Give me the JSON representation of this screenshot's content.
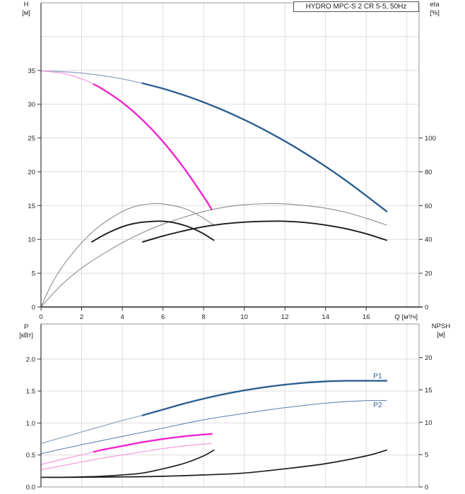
{
  "title_box": "HYDRO MPC-S 2 CR 5-5, 50Hz",
  "colors": {
    "head_thick_blue": "#2d5f92",
    "thin_blue": "#6b8cb5",
    "reduced_blue": "#8a9fc0",
    "magenta": "#f024ce",
    "light_pink": "#f49ade",
    "eta_grey": "#8c8c8c",
    "black_curve": "#1b1b1b",
    "grid": "#dedede",
    "border": "#999999",
    "axis_dark": "#333333"
  },
  "chart_data": [
    {
      "type": "line",
      "title": "HYDRO MPC-S 2 CR 5-5, 50Hz",
      "axes": {
        "left": {
          "sym": "H",
          "unit": "[м]",
          "ticks": [
            0,
            5,
            10,
            15,
            20,
            25,
            30,
            35
          ],
          "lim": [
            0,
            45
          ],
          "grid": [
            5,
            10,
            15,
            20,
            25,
            30,
            35,
            40
          ],
          "fmt": 0
        },
        "right": {
          "sym": "eta",
          "unit": "[%]",
          "ticks": [
            0,
            20,
            40,
            60,
            80,
            100
          ],
          "lim": [
            0,
            180
          ],
          "fmt": 0
        },
        "x": {
          "label": "Q [м³/ч]",
          "ticks": [
            0,
            2,
            4,
            6,
            8,
            10,
            12,
            14,
            16
          ],
          "grid": [
            2,
            4,
            6,
            8,
            10,
            12,
            14,
            16,
            18
          ],
          "lim": [
            0,
            18.6
          ],
          "show_labels": true
        }
      },
      "series": [
        {
          "name": "head-2pumps-reduced-speed",
          "axis": "left",
          "color": "#8a9fc0",
          "width": 1.2,
          "points": [
            [
              0,
              34.9
            ],
            [
              1,
              34.82
            ],
            [
              2,
              34.61
            ],
            [
              3,
              34.25
            ],
            [
              4,
              33.75
            ],
            [
              5,
              33.1
            ]
          ]
        },
        {
          "name": "head-2pumps",
          "axis": "left",
          "color": "#2d5f92",
          "width": 2.4,
          "points": [
            [
              5,
              33.1
            ],
            [
              6,
              32.31
            ],
            [
              7,
              31.37
            ],
            [
              8,
              30.29
            ],
            [
              9,
              29.07
            ],
            [
              10,
              27.7
            ],
            [
              11,
              26.19
            ],
            [
              12,
              24.53
            ],
            [
              13,
              22.73
            ],
            [
              14,
              20.79
            ],
            [
              15,
              18.7
            ],
            [
              16,
              16.47
            ],
            [
              17,
              14.15
            ]
          ]
        },
        {
          "name": "head-1pump-reduced-speed",
          "axis": "left",
          "color": "#f49ade",
          "width": 1.2,
          "points": [
            [
              0,
              34.9
            ],
            [
              1,
              34.61
            ],
            [
              2,
              33.74
            ],
            [
              2.6,
              32.94
            ]
          ]
        },
        {
          "name": "head-1pump",
          "axis": "left",
          "color": "#f024ce",
          "width": 2.4,
          "points": [
            [
              2.6,
              32.94
            ],
            [
              3,
              32.29
            ],
            [
              4,
              30.26
            ],
            [
              5,
              27.65
            ],
            [
              6,
              24.46
            ],
            [
              7,
              20.69
            ],
            [
              8,
              16.34
            ],
            [
              8.4,
              14.43
            ]
          ]
        },
        {
          "name": "eta-1pump",
          "axis": "right",
          "color": "#8c8c8c",
          "width": 1.1,
          "points": [
            [
              0,
              0
            ],
            [
              0.5,
              13
            ],
            [
              1,
              23
            ],
            [
              1.5,
              31
            ],
            [
              2,
              38
            ],
            [
              2.5,
              44
            ],
            [
              3,
              49
            ],
            [
              3.5,
              53
            ],
            [
              4,
              56.5
            ],
            [
              4.5,
              59
            ],
            [
              5,
              60.5
            ],
            [
              5.6,
              61.2
            ],
            [
              6,
              61
            ],
            [
              6.5,
              60
            ],
            [
              7,
              58.5
            ],
            [
              7.5,
              56
            ],
            [
              8,
              52.5
            ],
            [
              8.5,
              48.5
            ]
          ]
        },
        {
          "name": "eta-2pumps",
          "axis": "right",
          "color": "#8c8c8c",
          "width": 1.1,
          "points": [
            [
              0,
              0
            ],
            [
              1,
              13
            ],
            [
              2,
              23
            ],
            [
              3,
              31
            ],
            [
              4,
              38
            ],
            [
              5,
              44
            ],
            [
              6,
              49
            ],
            [
              7,
              53
            ],
            [
              8,
              56.5
            ],
            [
              9,
              59
            ],
            [
              10,
              60.5
            ],
            [
              11.2,
              61.2
            ],
            [
              12,
              61
            ],
            [
              13,
              60
            ],
            [
              14,
              58.5
            ],
            [
              15,
              56
            ],
            [
              16,
              52.5
            ],
            [
              17,
              48.5
            ]
          ]
        },
        {
          "name": "eta-pump-motor-1pump",
          "axis": "right",
          "color": "#1b1b1b",
          "width": 1.9,
          "points": [
            [
              2.5,
              38.5
            ],
            [
              3,
              42
            ],
            [
              3.5,
              45
            ],
            [
              4,
              47.5
            ],
            [
              4.5,
              49.2
            ],
            [
              5,
              50.2
            ],
            [
              5.7,
              50.8
            ],
            [
              6,
              50.7
            ],
            [
              6.5,
              50
            ],
            [
              7,
              48.5
            ],
            [
              7.5,
              46.3
            ],
            [
              8,
              43.3
            ],
            [
              8.5,
              39.5
            ]
          ]
        },
        {
          "name": "eta-pump-motor-2pumps",
          "axis": "right",
          "color": "#1b1b1b",
          "width": 1.9,
          "points": [
            [
              5,
              38.5
            ],
            [
              6,
              42
            ],
            [
              7,
              45
            ],
            [
              8,
              47.5
            ],
            [
              9,
              49.2
            ],
            [
              10,
              50.2
            ],
            [
              11.4,
              50.8
            ],
            [
              12,
              50.7
            ],
            [
              13,
              50
            ],
            [
              14,
              48.5
            ],
            [
              15,
              46.3
            ],
            [
              16,
              43.3
            ],
            [
              17,
              39.5
            ]
          ]
        }
      ],
      "annotations": []
    },
    {
      "type": "line",
      "title": "",
      "axes": {
        "left": {
          "sym": "P",
          "unit": "[кВт]",
          "ticks": [
            0,
            0.5,
            1,
            1.5,
            2
          ],
          "lim": [
            0,
            2.55
          ],
          "grid": [
            0.5,
            1,
            1.5,
            2
          ],
          "fmt": 1
        },
        "right": {
          "sym": "NPSH",
          "unit": "[м]",
          "ticks": [
            0,
            5,
            10,
            15,
            20
          ],
          "lim": [
            0,
            25.2
          ],
          "fmt": 0
        },
        "x": {
          "label": "",
          "ticks": [],
          "grid": [
            2,
            4,
            6,
            8,
            10,
            12,
            14,
            16,
            18
          ],
          "lim": [
            0,
            18.6
          ],
          "show_labels": false
        }
      },
      "series": [
        {
          "name": "p1-2pumps-reduced-speed",
          "axis": "left",
          "color": "#8a9fc0",
          "width": 1.2,
          "points": [
            [
              0,
              0.68
            ],
            [
              1,
              0.77
            ],
            [
              2,
              0.86
            ],
            [
              3,
              0.95
            ],
            [
              4,
              1.04
            ],
            [
              5,
              1.12
            ]
          ]
        },
        {
          "name": "p1-2pumps",
          "axis": "left",
          "color": "#2d5f92",
          "width": 2.4,
          "points": [
            [
              5,
              1.12
            ],
            [
              6,
              1.21
            ],
            [
              7,
              1.3
            ],
            [
              8,
              1.38
            ],
            [
              9,
              1.45
            ],
            [
              10,
              1.51
            ],
            [
              11,
              1.56
            ],
            [
              12,
              1.6
            ],
            [
              13,
              1.63
            ],
            [
              14,
              1.65
            ],
            [
              15,
              1.66
            ],
            [
              16,
              1.66
            ],
            [
              17,
              1.66
            ]
          ]
        },
        {
          "name": "p2-2pumps",
          "axis": "left",
          "color": "#6b8cb5",
          "width": 1.2,
          "points": [
            [
              0,
              0.52
            ],
            [
              2,
              0.66
            ],
            [
              4,
              0.79
            ],
            [
              6,
              0.92
            ],
            [
              8,
              1.05
            ],
            [
              10,
              1.15
            ],
            [
              12,
              1.24
            ],
            [
              14,
              1.31
            ],
            [
              16,
              1.35
            ],
            [
              17,
              1.35
            ]
          ]
        },
        {
          "name": "p1-1pump-reduced-speed",
          "axis": "left",
          "color": "#f49ade",
          "width": 1.2,
          "points": [
            [
              0,
              0.35
            ],
            [
              1,
              0.43
            ],
            [
              2,
              0.5
            ],
            [
              2.6,
              0.55
            ]
          ]
        },
        {
          "name": "p1-1pump",
          "axis": "left",
          "color": "#f024ce",
          "width": 2.4,
          "points": [
            [
              2.6,
              0.55
            ],
            [
              3,
              0.58
            ],
            [
              4,
              0.64
            ],
            [
              5,
              0.7
            ],
            [
              6,
              0.75
            ],
            [
              7,
              0.79
            ],
            [
              8,
              0.82
            ],
            [
              8.4,
              0.83
            ]
          ]
        },
        {
          "name": "p2-1pump",
          "axis": "left",
          "color": "#f49ade",
          "width": 1.2,
          "points": [
            [
              0,
              0.27
            ],
            [
              1,
              0.33
            ],
            [
              2,
              0.39
            ],
            [
              3,
              0.45
            ],
            [
              4,
              0.5
            ],
            [
              5,
              0.55
            ],
            [
              6,
              0.6
            ],
            [
              7,
              0.64
            ],
            [
              8,
              0.67
            ],
            [
              8.4,
              0.68
            ]
          ]
        },
        {
          "name": "npsh-1pump",
          "axis": "right",
          "color": "#1b1b1b",
          "width": 1.7,
          "points": [
            [
              0,
              1.5
            ],
            [
              1,
              1.5
            ],
            [
              2,
              1.55
            ],
            [
              3,
              1.65
            ],
            [
              4,
              1.85
            ],
            [
              5,
              2.15
            ],
            [
              6,
              2.8
            ],
            [
              7,
              3.6
            ],
            [
              8,
              4.8
            ],
            [
              8.5,
              5.7
            ]
          ]
        },
        {
          "name": "npsh-2pumps",
          "axis": "right",
          "color": "#1b1b1b",
          "width": 1.7,
          "points": [
            [
              0,
              1.5
            ],
            [
              2,
              1.5
            ],
            [
              4,
              1.55
            ],
            [
              6,
              1.65
            ],
            [
              8,
              1.85
            ],
            [
              10,
              2.15
            ],
            [
              12,
              2.8
            ],
            [
              14,
              3.6
            ],
            [
              16,
              4.8
            ],
            [
              17,
              5.7
            ]
          ]
        }
      ],
      "annotations": [
        {
          "text": "P1",
          "q": 16.35,
          "v": 1.7,
          "color": "#2d5f92"
        },
        {
          "text": "P2",
          "q": 16.35,
          "v": 1.25,
          "color": "#2d5f92"
        }
      ]
    }
  ]
}
